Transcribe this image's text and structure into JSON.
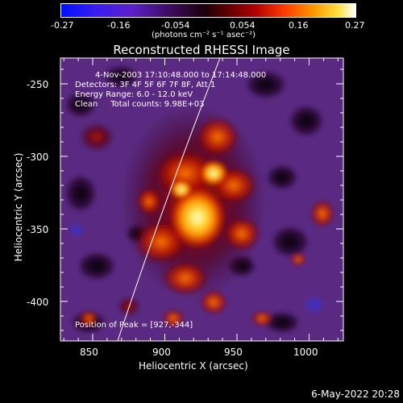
{
  "colorbar": {
    "ticks": [
      "-0.27",
      "-0.16",
      "-0.054",
      "0.054",
      "0.16",
      "0.27"
    ],
    "unit_label": "(photons cm⁻² s⁻¹ asec⁻²)"
  },
  "title": "Reconstructed RHESSI Image",
  "info": {
    "time": "4-Nov-2003 17:10:48.000 to 17:14:48.000",
    "detectors": "Detectors: 3F 4F 5F 6F 7F 8F, Att 1",
    "energy": "Energy Range: 6.0 - 12.0 keV",
    "clean": "Clean     Total counts: 9.98E+03"
  },
  "peak_label": "Position of Peak = [927,-344]",
  "axes": {
    "xlabel": "Heliocentric X (arcsec)",
    "ylabel": "Heliocentric Y (arcsec)",
    "xticks": [
      "850",
      "900",
      "950",
      "1000"
    ],
    "yticks": [
      "-250",
      "-300",
      "-350",
      "-400"
    ]
  },
  "date_stamp": "6-May-2022 20:28",
  "colors": {
    "background": "#000000",
    "plasma_purple": "#5a2a82",
    "flare_core": "#fff38a"
  }
}
